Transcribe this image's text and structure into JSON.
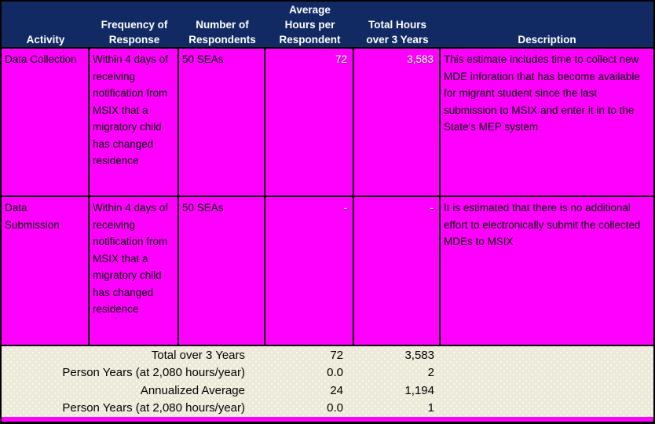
{
  "colors": {
    "header_bg": "#122a64",
    "header_text": "#ffffff",
    "row_bg": "#ff00ff",
    "row_text": "#000000",
    "row_number_text": "#ffffff",
    "footer_bg": "#ecead9",
    "border": "#000000"
  },
  "table": {
    "header": {
      "activity": "Activity",
      "frequency": "Frequency of\nResponse",
      "respondents": "Number of\nRespondents",
      "avg_hours": "Average\nHours per\nRespondent",
      "total_hours": "Total Hours\nover 3 Years",
      "description": "Description"
    },
    "rows": [
      {
        "activity": "Data Collection",
        "frequency": "Within 4 days of receiving notification from MSIX that a migratory child has changed residence",
        "respondents": "50 SEAs",
        "avg_hours": "72",
        "total_hours": "3,583",
        "description": "This estimate includes time to collect new MDE inforation that has become available for migrant student since the last submission to MSIX and enter it in to the State's MEP system"
      },
      {
        "activity": "Data Submission",
        "frequency": "Within 4 days of receiving notification from MSIX that a migratory child has changed residence",
        "respondents": "50 SEAs",
        "avg_hours": "-",
        "total_hours": "-",
        "description": "It is estimated that there is no additional effort to electronically submit the collected MDEs to MSIX"
      }
    ],
    "footer": {
      "rows": [
        {
          "label": "Total over 3 Years",
          "avg_hours": "72",
          "total_hours": "3,583"
        },
        {
          "label": "Person Years (at 2,080 hours/year)",
          "avg_hours": "0.0",
          "total_hours": "2"
        },
        {
          "label": "Annualized Average",
          "avg_hours": "24",
          "total_hours": "1,194"
        },
        {
          "label": "Person Years (at 2,080 hours/year)",
          "avg_hours": "0.0",
          "total_hours": "1"
        }
      ]
    }
  }
}
